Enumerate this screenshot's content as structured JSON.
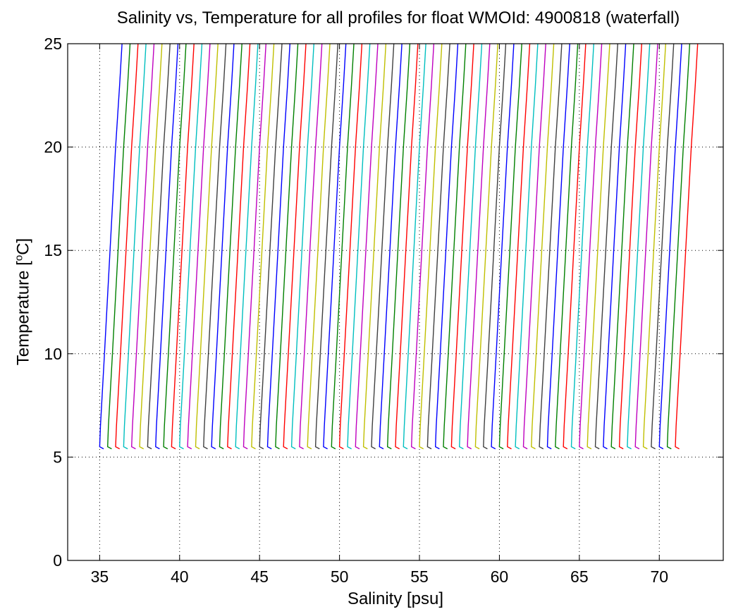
{
  "chart_data": {
    "type": "line",
    "title": "Salinity vs, Temperature for all profiles for float WMOId: 4900818 (waterfall)",
    "xlabel": "Salinity [psu]",
    "ylabel_text": "Temperature [",
    "ylabel_sup": "o",
    "ylabel_tail": "C]",
    "xlim": [
      33.0,
      74.0
    ],
    "ylim": [
      0,
      25
    ],
    "xticks": [
      35,
      40,
      45,
      50,
      55,
      60,
      65,
      70
    ],
    "yticks": [
      0,
      5,
      10,
      15,
      20,
      25
    ],
    "grid": "dotted",
    "n_profiles": 73,
    "profile_offset_step": 0.5,
    "base_profile": [
      {
        "s": 35.0,
        "t": 5.5
      },
      {
        "s": 35.05,
        "t": 6.5
      },
      {
        "s": 35.3,
        "t": 10.0
      },
      {
        "s": 35.65,
        "t": 15.0
      },
      {
        "s": 36.0,
        "t": 20.0
      },
      {
        "s": 36.25,
        "t": 23.0
      },
      {
        "s": 36.4,
        "t": 25.0
      }
    ],
    "series_colors": [
      "#0000ff",
      "#008000",
      "#ff0000",
      "#00bfbf",
      "#bf00bf",
      "#bfbf00",
      "#404040"
    ]
  }
}
